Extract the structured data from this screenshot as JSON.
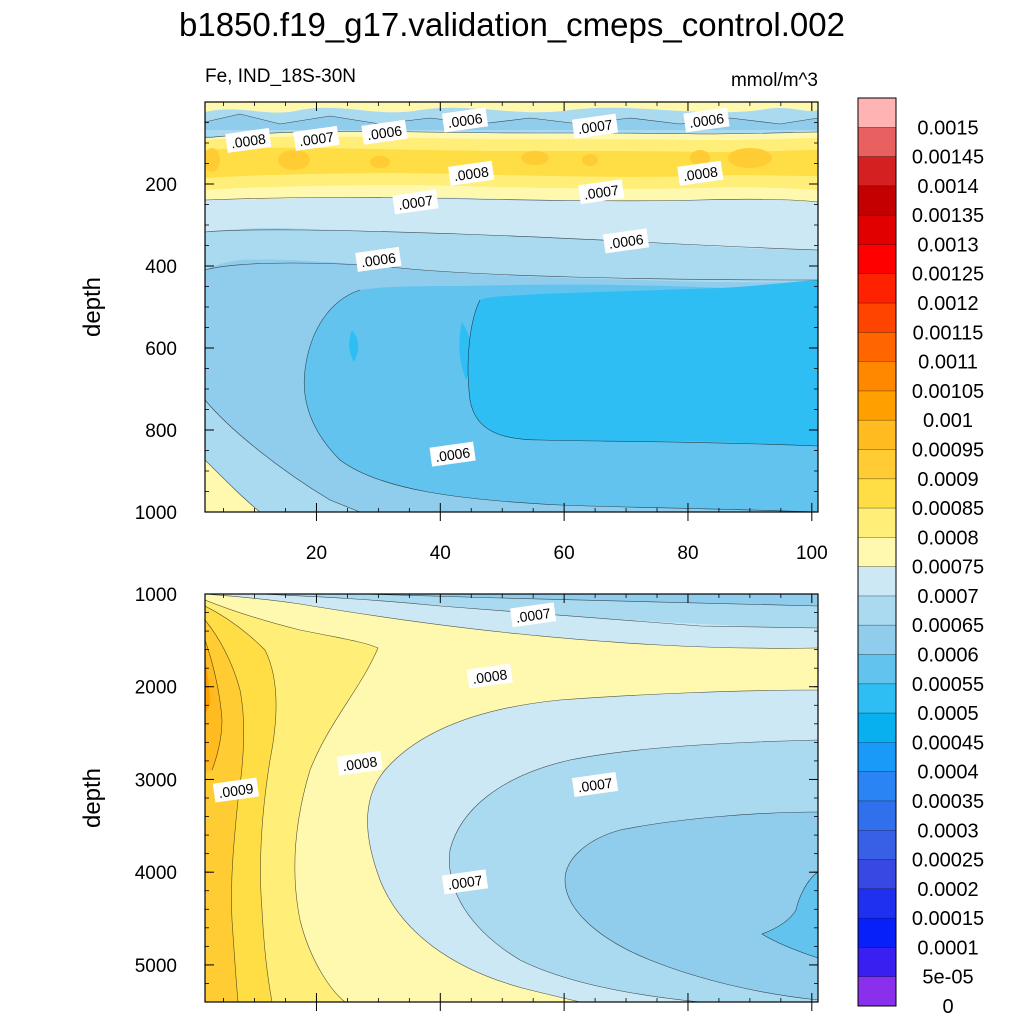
{
  "title": "b1850.f19_g17.validation_cmeps_control.002",
  "subtitle_left": "Fe, IND_18S-30N",
  "units": "mmol/m^3",
  "colorbar": {
    "labels": [
      "0.0015",
      "0.00145",
      "0.0014",
      "0.00135",
      "0.0013",
      "0.00125",
      "0.0012",
      "0.00115",
      "0.0011",
      "0.00105",
      "0.001",
      "0.00095",
      "0.0009",
      "0.00085",
      "0.0008",
      "0.00075",
      "0.0007",
      "0.00065",
      "0.0006",
      "0.00055",
      "0.0005",
      "0.00045",
      "0.0004",
      "0.00035",
      "0.0003",
      "0.00025",
      "0.0002",
      "0.00015",
      "0.0001",
      "5e-05",
      "0"
    ],
    "colors": [
      "#ffb3b3",
      "#e86060",
      "#d42020",
      "#c40000",
      "#e00000",
      "#ff0000",
      "#ff2200",
      "#ff4400",
      "#ff6600",
      "#ff8800",
      "#ffa000",
      "#ffbb20",
      "#ffcc33",
      "#ffdd44",
      "#ffee77",
      "#fff9b0",
      "#cce8f4",
      "#aadaf0",
      "#90ccec",
      "#62c4ee",
      "#2ebef4",
      "#08b0f0",
      "#1a9af8",
      "#2a84f4",
      "#3070ec",
      "#3860e6",
      "#3848e2",
      "#2030f0",
      "#0820f8",
      "#3a20f0",
      "#8a30ec"
    ]
  },
  "chart_data": [
    {
      "type": "contour",
      "panel": "upper",
      "ylabel": "depth",
      "xlabel": "",
      "xlim": [
        2,
        101
      ],
      "ylim": [
        0,
        1000
      ],
      "y_inverted": true,
      "xticks": [
        "20",
        "40",
        "60",
        "80",
        "100"
      ],
      "yticks": [
        "200",
        "400",
        "600",
        "800",
        "1000"
      ],
      "contour_labels": [
        {
          "text": ".0008",
          "x": 9,
          "y": 95
        },
        {
          "text": ".0007",
          "x": 20,
          "y": 90
        },
        {
          "text": ".0006",
          "x": 31,
          "y": 75
        },
        {
          "text": ".0006",
          "x": 44,
          "y": 45
        },
        {
          "text": ".0007",
          "x": 65,
          "y": 60
        },
        {
          "text": ".0006",
          "x": 83,
          "y": 45
        },
        {
          "text": ".0008",
          "x": 45,
          "y": 175
        },
        {
          "text": ".0008",
          "x": 82,
          "y": 175
        },
        {
          "text": ".0007",
          "x": 36,
          "y": 245
        },
        {
          "text": ".0007",
          "x": 66,
          "y": 220
        },
        {
          "text": ".0006",
          "x": 70,
          "y": 340
        },
        {
          "text": ".0006",
          "x": 30,
          "y": 385
        },
        {
          "text": ".0006",
          "x": 42,
          "y": 860
        }
      ]
    },
    {
      "type": "contour",
      "panel": "lower",
      "ylabel": "depth",
      "xlabel": "",
      "xlim": [
        2,
        101
      ],
      "ylim": [
        1000,
        5400
      ],
      "y_inverted": true,
      "yticks": [
        "1000",
        "2000",
        "3000",
        "4000",
        "5000"
      ],
      "contour_labels": [
        {
          "text": ".0007",
          "x": 55,
          "y": 1230
        },
        {
          "text": ".0008",
          "x": 48,
          "y": 1890
        },
        {
          "text": ".0008",
          "x": 27,
          "y": 2830
        },
        {
          "text": ".0007",
          "x": 65,
          "y": 3060
        },
        {
          "text": ".0009",
          "x": 7,
          "y": 3120
        },
        {
          "text": ".0007",
          "x": 44,
          "y": 4110
        }
      ]
    }
  ]
}
